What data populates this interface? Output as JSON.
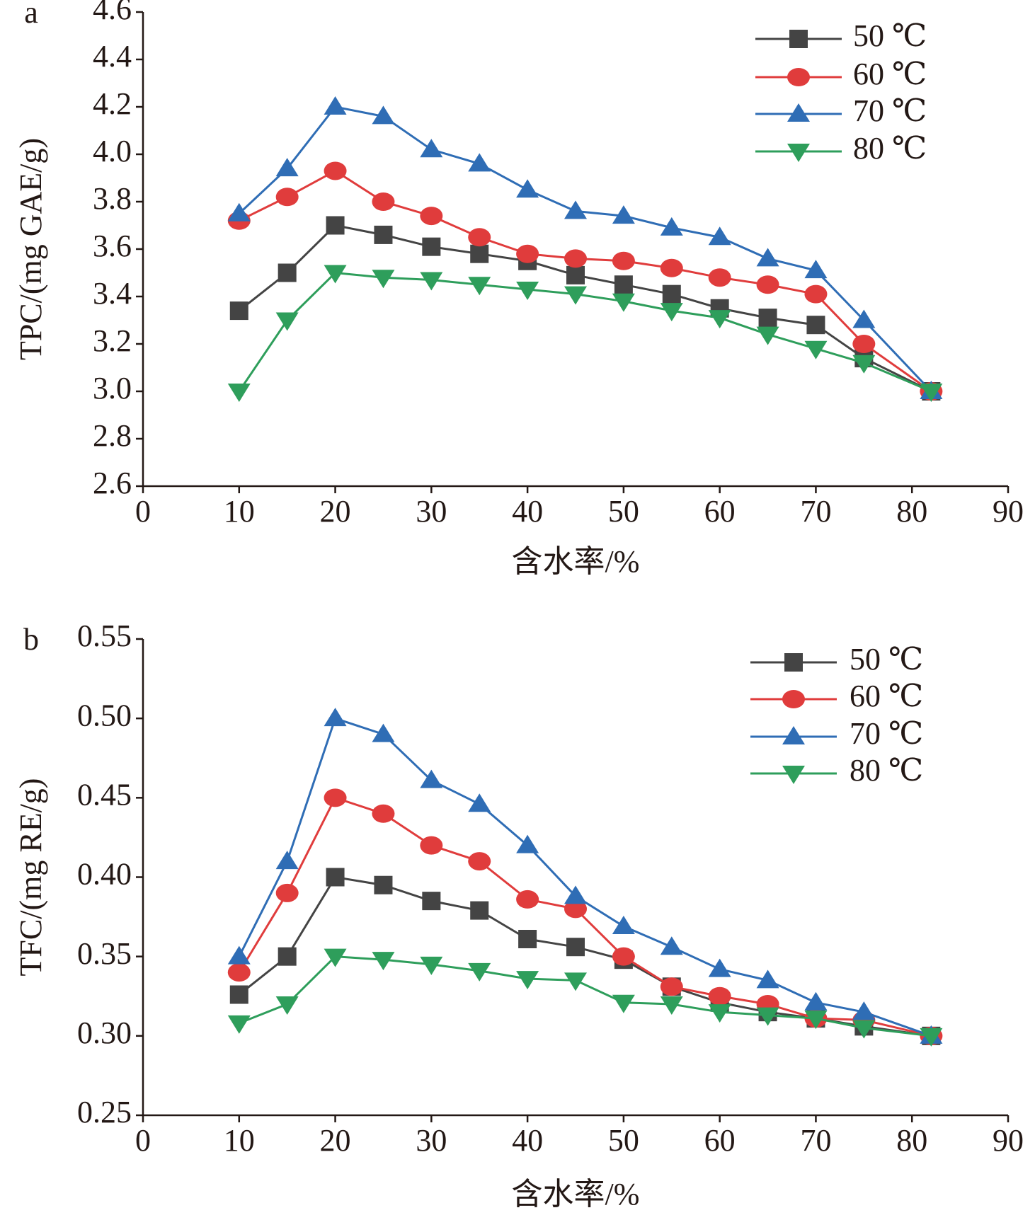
{
  "chart_data": [
    {
      "type": "line",
      "panel_label": "a",
      "ylabel": "TPC/(mg GAE/g)",
      "xlabel": "含水率/%",
      "x": [
        10,
        15,
        20,
        25,
        30,
        35,
        40,
        45,
        50,
        55,
        60,
        65,
        70,
        75,
        82
      ],
      "xlim": [
        0,
        90
      ],
      "xticks": [
        0,
        10,
        20,
        30,
        40,
        50,
        60,
        70,
        80,
        90
      ],
      "ylim": [
        2.6,
        4.6
      ],
      "yticks": [
        2.6,
        2.8,
        {
          "value": 3,
          "label": "3.0"
        },
        3.2,
        3.4,
        3.6,
        3.8,
        {
          "value": 4,
          "label": "4.0"
        },
        4.2,
        4.4,
        4.6
      ],
      "legend": "upper right",
      "series": [
        {
          "name": "50 ℃",
          "color": "#444444",
          "marker": "square",
          "values": [
            3.34,
            3.5,
            3.7,
            3.66,
            3.61,
            3.58,
            3.55,
            3.49,
            3.45,
            3.41,
            3.35,
            3.31,
            3.28,
            3.14,
            3.0
          ]
        },
        {
          "name": "60 ℃",
          "color": "#e03c3c",
          "marker": "circle",
          "values": [
            3.72,
            3.82,
            3.93,
            3.8,
            3.74,
            3.65,
            3.58,
            3.56,
            3.55,
            3.52,
            3.48,
            3.45,
            3.41,
            3.2,
            3.0
          ]
        },
        {
          "name": "70 ℃",
          "color": "#2f6db5",
          "marker": "triangle-up",
          "values": [
            3.75,
            3.94,
            4.2,
            4.16,
            4.02,
            3.96,
            3.85,
            3.76,
            3.74,
            3.69,
            3.65,
            3.56,
            3.51,
            3.3,
            3.0
          ]
        },
        {
          "name": "80 ℃",
          "color": "#2e9e5b",
          "marker": "triangle-down",
          "values": [
            3.0,
            3.3,
            3.5,
            3.48,
            3.47,
            3.45,
            3.43,
            3.41,
            3.38,
            3.34,
            3.31,
            3.24,
            3.18,
            3.12,
            3.0
          ]
        }
      ]
    },
    {
      "type": "line",
      "panel_label": "b",
      "ylabel": "TFC/(mg RE/g)",
      "xlabel": "含水率/%",
      "x": [
        10,
        15,
        20,
        25,
        30,
        35,
        40,
        45,
        50,
        55,
        60,
        65,
        70,
        75,
        82
      ],
      "xlim": [
        0,
        90
      ],
      "xticks": [
        0,
        10,
        20,
        30,
        40,
        50,
        60,
        70,
        80,
        90
      ],
      "ylim": [
        0.25,
        0.55
      ],
      "yticks": [
        0.25,
        {
          "value": 0.3,
          "label": "0.30"
        },
        0.35,
        {
          "value": 0.4,
          "label": "0.40"
        },
        0.45,
        {
          "value": 0.5,
          "label": "0.50"
        },
        0.55
      ],
      "legend": "upper right",
      "series": [
        {
          "name": "50 ℃",
          "color": "#444444",
          "marker": "square",
          "values": [
            0.326,
            0.35,
            0.4,
            0.395,
            0.385,
            0.379,
            0.361,
            0.356,
            0.348,
            0.331,
            0.321,
            0.315,
            0.311,
            0.306,
            0.3
          ]
        },
        {
          "name": "60 ℃",
          "color": "#e03c3c",
          "marker": "circle",
          "values": [
            0.34,
            0.39,
            0.45,
            0.44,
            0.42,
            0.41,
            0.386,
            0.38,
            0.35,
            0.331,
            0.325,
            0.32,
            0.311,
            0.31,
            0.3
          ]
        },
        {
          "name": "70 ℃",
          "color": "#2f6db5",
          "marker": "triangle-up",
          "values": [
            0.35,
            0.41,
            0.5,
            0.49,
            0.461,
            0.446,
            0.42,
            0.388,
            0.369,
            0.356,
            0.342,
            0.335,
            0.321,
            0.315,
            0.3
          ]
        },
        {
          "name": "80 ℃",
          "color": "#2e9e5b",
          "marker": "triangle-down",
          "values": [
            0.308,
            0.32,
            0.35,
            0.348,
            0.345,
            0.341,
            0.336,
            0.335,
            0.321,
            0.32,
            0.315,
            0.313,
            0.311,
            0.305,
            0.3
          ]
        }
      ]
    }
  ]
}
